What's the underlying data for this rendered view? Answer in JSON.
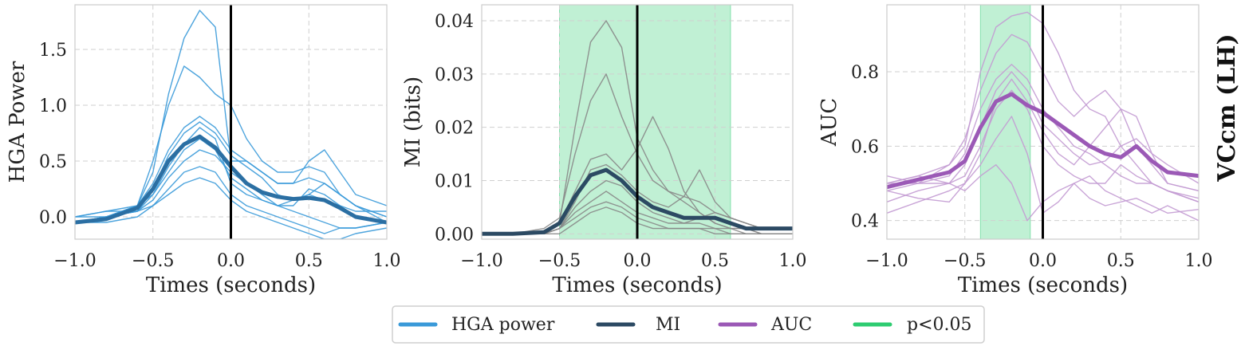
{
  "side_label": "VCcm (LH)",
  "legend": [
    {
      "label": "HGA power",
      "color": "#3a9ad9"
    },
    {
      "label": "MI",
      "color": "#2c4a63"
    },
    {
      "label": "AUC",
      "color": "#9b59b6"
    },
    {
      "label": "p<0.05",
      "color": "#2ecc71"
    }
  ],
  "chart_data": [
    {
      "type": "line",
      "title": "",
      "xlabel": "Times (seconds)",
      "ylabel": "HGA Power",
      "xlim": [
        -1.0,
        1.0
      ],
      "ylim": [
        -0.2,
        1.9
      ],
      "xticks": [
        -1.0,
        -0.5,
        0.0,
        0.5,
        1.0
      ],
      "xtick_labels": [
        "−1.0",
        "−0.5",
        "0.0",
        "0.5",
        "1.0"
      ],
      "yticks": [
        0.0,
        0.5,
        1.0,
        1.5
      ],
      "ytick_labels": [
        "0.0",
        "0.5",
        "1.0",
        "1.5"
      ],
      "vline": 0.0,
      "thin_color": "#3a9ad9",
      "mean_color": "#2b6fa3",
      "x": [
        -1.0,
        -0.8,
        -0.6,
        -0.5,
        -0.4,
        -0.3,
        -0.2,
        -0.1,
        0.0,
        0.1,
        0.2,
        0.3,
        0.4,
        0.5,
        0.6,
        0.7,
        0.8,
        1.0
      ],
      "series": [
        {
          "name": "trace1",
          "values": [
            -0.05,
            0.0,
            0.1,
            0.4,
            1.1,
            1.6,
            1.85,
            1.7,
            0.5,
            0.5,
            0.4,
            0.3,
            0.3,
            0.35,
            0.3,
            0.2,
            0.1,
            -0.05
          ]
        },
        {
          "name": "trace2",
          "values": [
            -0.05,
            0.0,
            0.1,
            0.5,
            1.0,
            1.35,
            1.25,
            1.1,
            1.0,
            0.7,
            0.5,
            0.4,
            0.4,
            0.45,
            0.4,
            0.2,
            0.1,
            0.0
          ]
        },
        {
          "name": "trace3",
          "values": [
            0.0,
            0.05,
            0.1,
            0.3,
            0.6,
            0.8,
            0.9,
            0.8,
            0.6,
            0.5,
            0.4,
            0.3,
            0.3,
            0.5,
            0.6,
            0.4,
            0.2,
            0.1
          ]
        },
        {
          "name": "trace4",
          "values": [
            -0.05,
            0.0,
            0.05,
            0.25,
            0.55,
            0.75,
            0.85,
            0.75,
            0.55,
            0.45,
            0.35,
            0.2,
            0.15,
            0.2,
            0.3,
            0.2,
            0.1,
            0.0
          ]
        },
        {
          "name": "trace5",
          "values": [
            0.0,
            0.05,
            0.05,
            0.2,
            0.45,
            0.65,
            0.8,
            0.7,
            0.3,
            0.2,
            0.15,
            0.1,
            0.1,
            0.25,
            0.2,
            0.1,
            0.05,
            0.05
          ]
        },
        {
          "name": "trace6",
          "values": [
            -0.05,
            0.0,
            0.05,
            0.15,
            0.35,
            0.5,
            0.6,
            0.55,
            0.4,
            0.3,
            0.2,
            0.1,
            0.05,
            0.0,
            -0.05,
            -0.1,
            -0.1,
            -0.05
          ]
        },
        {
          "name": "trace7",
          "values": [
            -0.05,
            -0.05,
            0.0,
            0.1,
            0.25,
            0.4,
            0.45,
            0.4,
            0.2,
            0.1,
            0.05,
            0.0,
            -0.05,
            -0.1,
            -0.15,
            -0.1,
            -0.1,
            -0.05
          ]
        },
        {
          "name": "trace8",
          "values": [
            0.0,
            0.0,
            0.05,
            0.1,
            0.2,
            0.3,
            0.35,
            0.3,
            0.15,
            0.05,
            0.0,
            -0.05,
            -0.1,
            -0.15,
            -0.2,
            -0.2,
            -0.15,
            -0.1
          ]
        },
        {
          "name": "trace9",
          "values": [
            -0.05,
            0.0,
            0.1,
            0.2,
            0.4,
            0.6,
            0.7,
            0.6,
            0.35,
            0.25,
            0.15,
            0.1,
            0.15,
            0.2,
            0.15,
            0.1,
            0.0,
            -0.05
          ]
        }
      ],
      "mean": {
        "name": "HGA power",
        "values": [
          -0.05,
          -0.02,
          0.08,
          0.25,
          0.5,
          0.65,
          0.72,
          0.62,
          0.45,
          0.3,
          0.22,
          0.18,
          0.16,
          0.17,
          0.15,
          0.08,
          0.0,
          -0.05
        ]
      }
    },
    {
      "type": "line",
      "title": "",
      "xlabel": "Times (seconds)",
      "ylabel": "MI (bits)",
      "xlim": [
        -1.0,
        1.0
      ],
      "ylim": [
        -0.001,
        0.043
      ],
      "xticks": [
        -1.0,
        -0.5,
        0.0,
        0.5,
        1.0
      ],
      "xtick_labels": [
        "−1.0",
        "−0.5",
        "0.0",
        "0.5",
        "1.0"
      ],
      "yticks": [
        0.0,
        0.01,
        0.02,
        0.03,
        0.04
      ],
      "ytick_labels": [
        "0.00",
        "0.01",
        "0.02",
        "0.03",
        "0.04"
      ],
      "vline": 0.0,
      "shade": [
        -0.5,
        0.6
      ],
      "thin_color": "#888888",
      "mean_color": "#2c4a63",
      "x": [
        -1.0,
        -0.8,
        -0.6,
        -0.5,
        -0.4,
        -0.3,
        -0.2,
        -0.1,
        0.0,
        0.1,
        0.2,
        0.3,
        0.4,
        0.5,
        0.6,
        0.7,
        0.8,
        1.0
      ],
      "series": [
        {
          "name": "trace1",
          "values": [
            0.0,
            0.0,
            0.0,
            0.002,
            0.02,
            0.036,
            0.04,
            0.035,
            0.018,
            0.012,
            0.008,
            0.007,
            0.006,
            0.004,
            0.003,
            0.002,
            0.001,
            0.001
          ]
        },
        {
          "name": "trace2",
          "values": [
            0.0,
            0.0,
            0.001,
            0.003,
            0.015,
            0.025,
            0.03,
            0.022,
            0.015,
            0.01,
            0.008,
            0.006,
            0.004,
            0.002,
            0.001,
            0.001,
            0.0,
            0.0
          ]
        },
        {
          "name": "trace3",
          "values": [
            0.0,
            0.0,
            0.0,
            0.002,
            0.008,
            0.014,
            0.015,
            0.012,
            0.016,
            0.022,
            0.016,
            0.008,
            0.004,
            0.002,
            0.001,
            0.001,
            0.0,
            0.0
          ]
        },
        {
          "name": "trace4",
          "values": [
            0.0,
            0.0,
            0.0,
            0.001,
            0.006,
            0.012,
            0.013,
            0.011,
            0.008,
            0.006,
            0.005,
            0.007,
            0.012,
            0.006,
            0.003,
            0.002,
            0.001,
            0.001
          ]
        },
        {
          "name": "trace5",
          "values": [
            0.0,
            0.0,
            0.0,
            0.001,
            0.005,
            0.008,
            0.01,
            0.009,
            0.006,
            0.004,
            0.003,
            0.002,
            0.002,
            0.001,
            0.001,
            0.0,
            0.0,
            0.0
          ]
        },
        {
          "name": "trace6",
          "values": [
            0.0,
            0.0,
            0.0,
            0.001,
            0.004,
            0.006,
            0.008,
            0.006,
            0.004,
            0.003,
            0.002,
            0.002,
            0.003,
            0.004,
            0.003,
            0.002,
            0.001,
            0.001
          ]
        },
        {
          "name": "trace7",
          "values": [
            0.0,
            0.0,
            0.0,
            0.001,
            0.003,
            0.005,
            0.006,
            0.005,
            0.003,
            0.002,
            0.001,
            0.001,
            0.001,
            0.001,
            0.0,
            0.0,
            0.0,
            0.0
          ]
        },
        {
          "name": "trace8",
          "values": [
            0.0,
            0.0,
            0.0,
            0.0,
            0.002,
            0.004,
            0.005,
            0.004,
            0.002,
            0.001,
            0.001,
            0.001,
            0.001,
            0.0,
            0.0,
            0.0,
            0.0,
            0.0
          ]
        }
      ],
      "mean": {
        "name": "MI",
        "values": [
          0.0,
          0.0,
          0.0003,
          0.002,
          0.007,
          0.011,
          0.012,
          0.01,
          0.007,
          0.005,
          0.004,
          0.003,
          0.003,
          0.003,
          0.002,
          0.001,
          0.001,
          0.001
        ]
      }
    },
    {
      "type": "line",
      "title": "",
      "xlabel": "Times (seconds)",
      "ylabel": "AUC",
      "xlim": [
        -1.0,
        1.0
      ],
      "ylim": [
        0.35,
        0.98
      ],
      "xticks": [
        -1.0,
        -0.5,
        0.0,
        0.5,
        1.0
      ],
      "xtick_labels": [
        "−1.0",
        "−0.5",
        "0.0",
        "0.5",
        "1.0"
      ],
      "yticks": [
        0.4,
        0.6,
        0.8
      ],
      "ytick_labels": [
        "0.4",
        "0.6",
        "0.8"
      ],
      "vline": 0.0,
      "shade": [
        -0.4,
        -0.08
      ],
      "thin_color": "#c39bd3",
      "mean_color": "#9b59b6",
      "x": [
        -1.0,
        -0.8,
        -0.6,
        -0.5,
        -0.4,
        -0.3,
        -0.2,
        -0.1,
        0.0,
        0.1,
        0.2,
        0.3,
        0.4,
        0.5,
        0.6,
        0.7,
        0.8,
        1.0
      ],
      "series": [
        {
          "name": "trace1",
          "values": [
            0.5,
            0.52,
            0.55,
            0.6,
            0.8,
            0.92,
            0.95,
            0.96,
            0.93,
            0.85,
            0.75,
            0.7,
            0.68,
            0.6,
            0.55,
            0.5,
            0.48,
            0.45
          ]
        },
        {
          "name": "trace2",
          "values": [
            0.48,
            0.5,
            0.55,
            0.62,
            0.75,
            0.85,
            0.9,
            0.88,
            0.8,
            0.72,
            0.68,
            0.72,
            0.75,
            0.7,
            0.6,
            0.55,
            0.5,
            0.48
          ]
        },
        {
          "name": "trace3",
          "values": [
            0.5,
            0.5,
            0.52,
            0.58,
            0.7,
            0.78,
            0.82,
            0.78,
            0.7,
            0.65,
            0.6,
            0.58,
            0.55,
            0.52,
            0.5,
            0.5,
            0.48,
            0.45
          ]
        },
        {
          "name": "trace4",
          "values": [
            0.52,
            0.5,
            0.5,
            0.55,
            0.65,
            0.75,
            0.8,
            0.75,
            0.66,
            0.62,
            0.58,
            0.55,
            0.56,
            0.6,
            0.62,
            0.58,
            0.55,
            0.5
          ]
        },
        {
          "name": "trace5",
          "values": [
            0.45,
            0.48,
            0.5,
            0.52,
            0.6,
            0.7,
            0.75,
            0.7,
            0.6,
            0.55,
            0.52,
            0.5,
            0.5,
            0.55,
            0.52,
            0.5,
            0.48,
            0.46
          ]
        },
        {
          "name": "trace6",
          "values": [
            0.42,
            0.45,
            0.48,
            0.5,
            0.55,
            0.62,
            0.68,
            0.58,
            0.42,
            0.45,
            0.5,
            0.52,
            0.48,
            0.46,
            0.44,
            0.42,
            0.44,
            0.4
          ]
        },
        {
          "name": "trace7",
          "values": [
            0.48,
            0.46,
            0.45,
            0.5,
            0.58,
            0.72,
            0.78,
            0.72,
            0.64,
            0.58,
            0.55,
            0.6,
            0.65,
            0.7,
            0.68,
            0.58,
            0.5,
            0.48
          ]
        },
        {
          "name": "trace8",
          "values": [
            0.5,
            0.52,
            0.5,
            0.48,
            0.52,
            0.55,
            0.5,
            0.4,
            0.45,
            0.48,
            0.5,
            0.46,
            0.44,
            0.45,
            0.46,
            0.44,
            0.42,
            0.43
          ]
        }
      ],
      "mean": {
        "name": "AUC",
        "values": [
          0.49,
          0.51,
          0.53,
          0.56,
          0.65,
          0.72,
          0.74,
          0.71,
          0.69,
          0.66,
          0.63,
          0.6,
          0.58,
          0.57,
          0.6,
          0.56,
          0.53,
          0.52
        ]
      }
    }
  ]
}
